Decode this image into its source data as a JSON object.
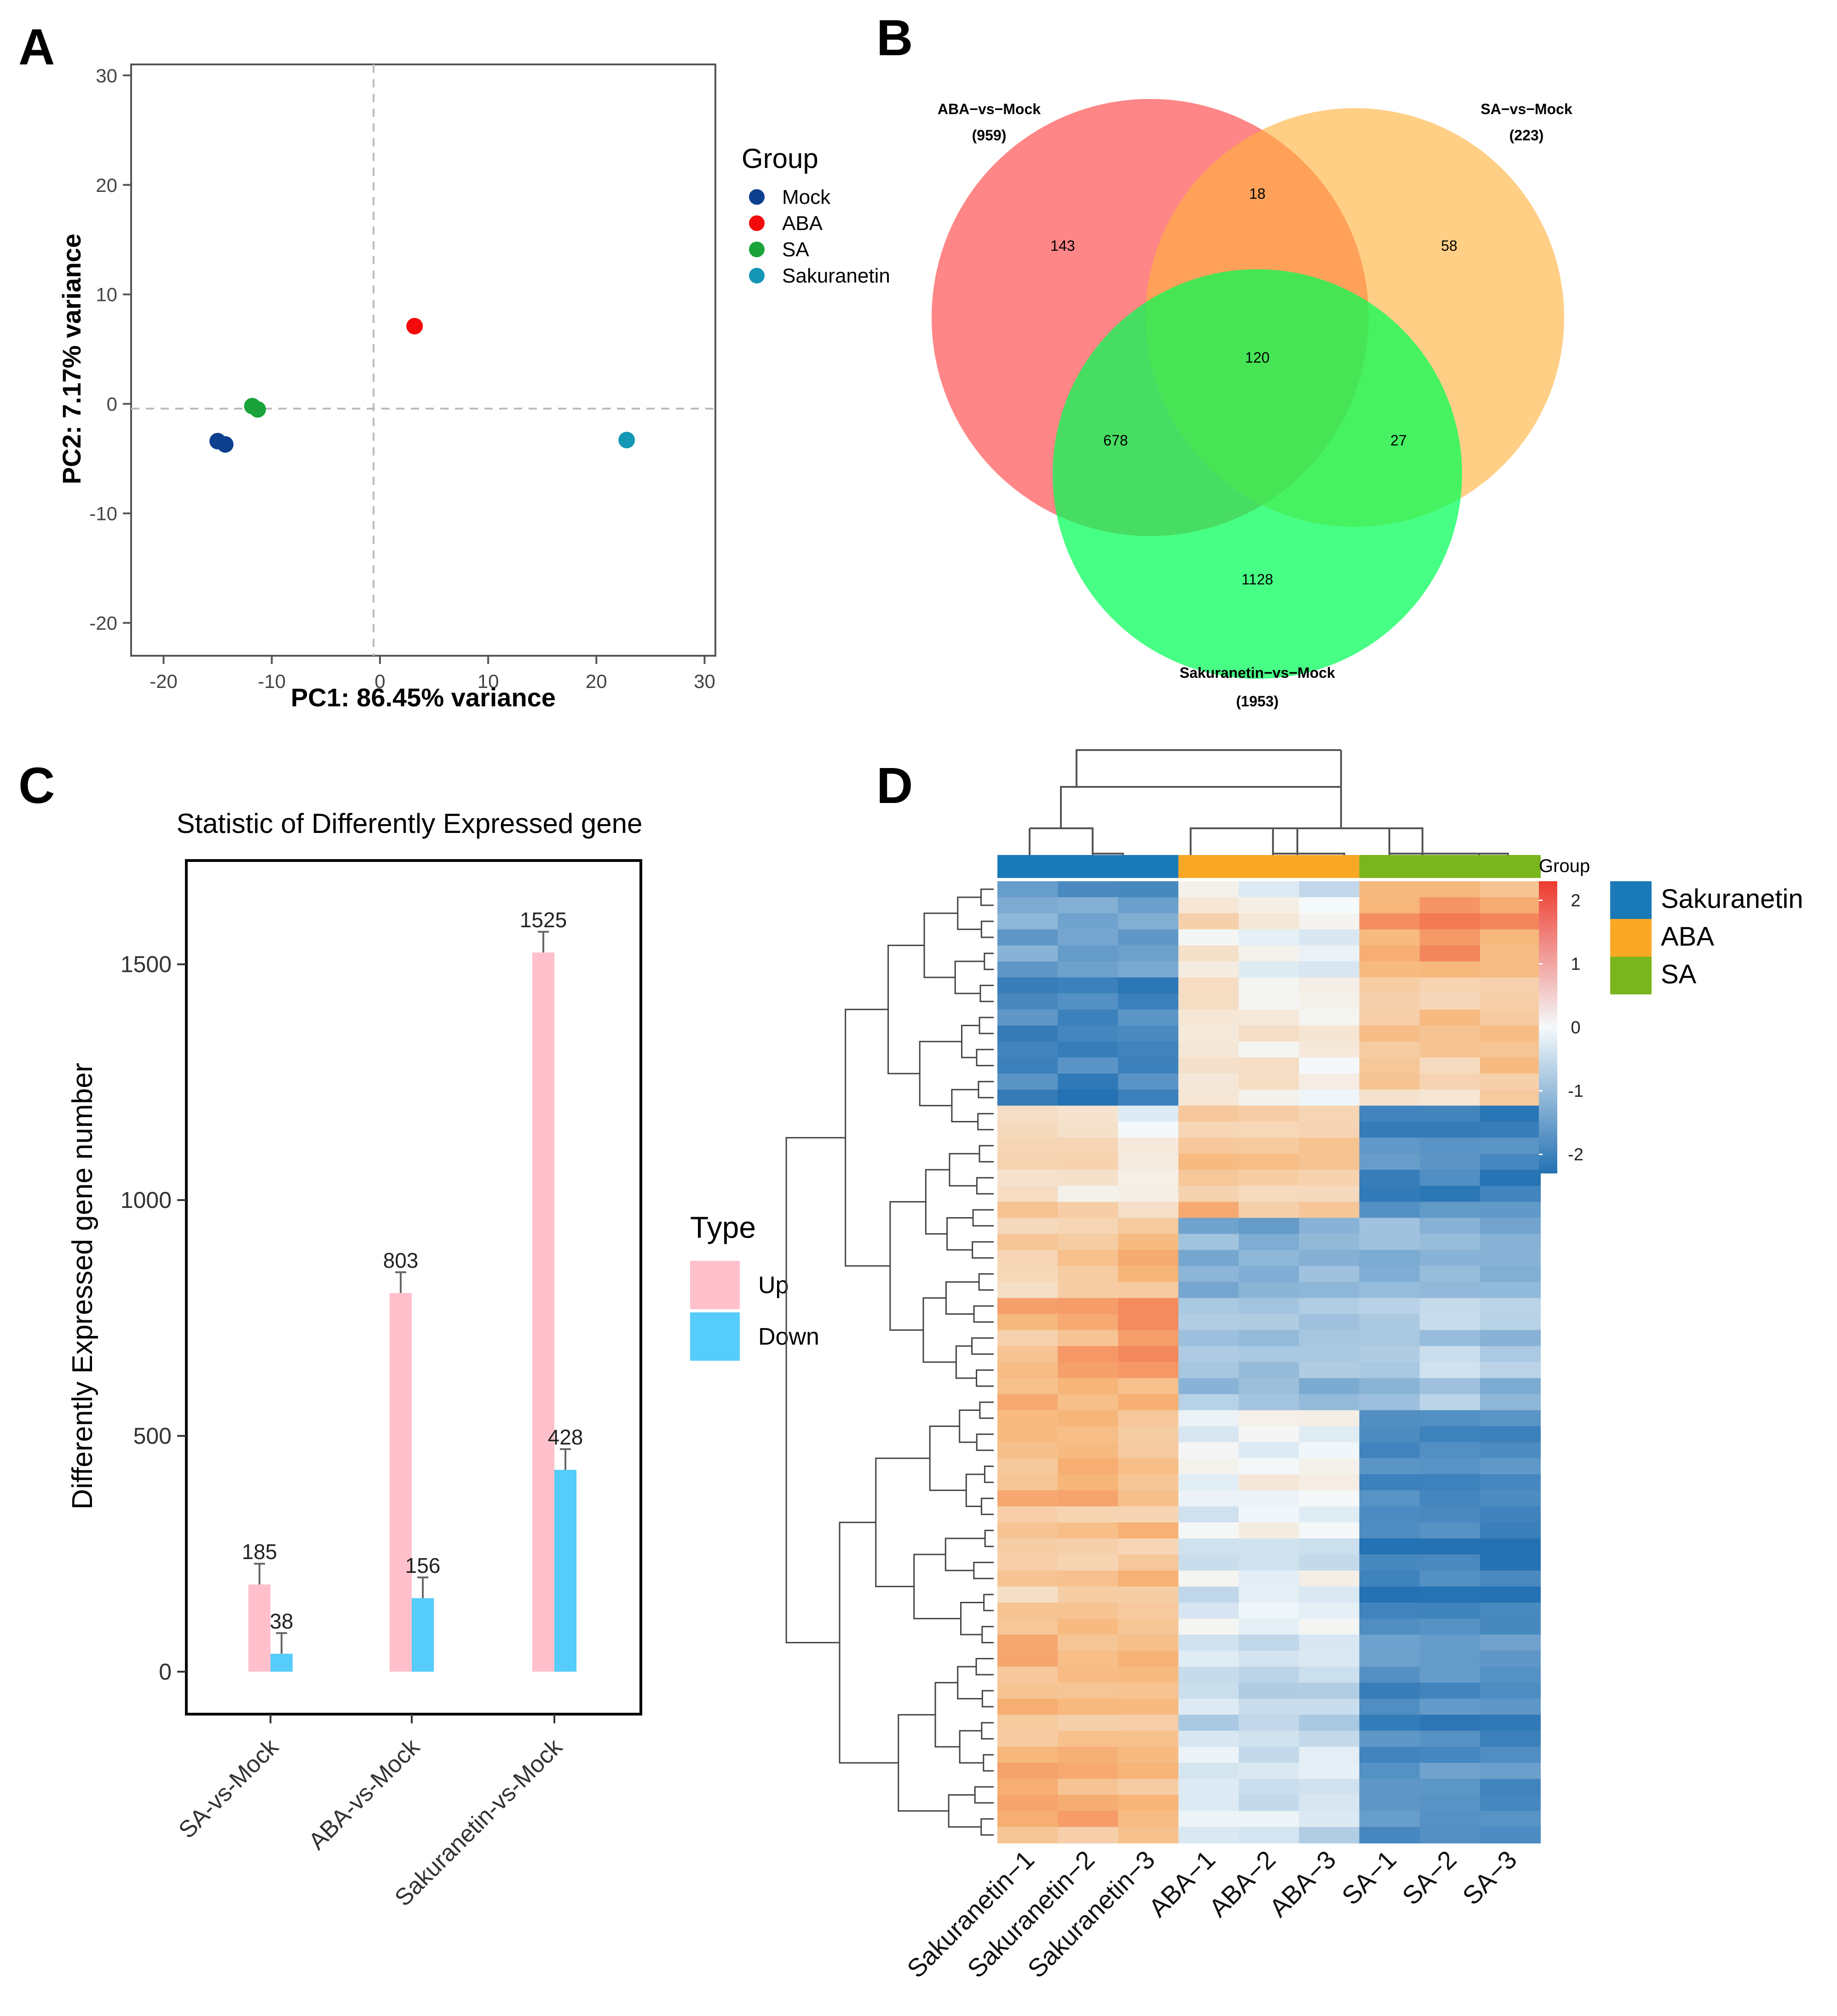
{
  "panels": {
    "a": "A",
    "b": "B",
    "c": "C",
    "d": "D"
  },
  "chart_data": [
    {
      "type": "scatter",
      "panel": "A",
      "title": "",
      "xlabel": "PC1: 86.45% variance",
      "ylabel": "PC2: 7.17% variance",
      "xlim": [
        -23,
        31
      ],
      "ylim": [
        -23,
        31
      ],
      "xticks": [
        -20,
        -10,
        0,
        10,
        20,
        30
      ],
      "yticks": [
        -20,
        -10,
        0,
        10,
        20,
        30
      ],
      "legend_title": "Group",
      "legend_position": "right",
      "series": [
        {
          "name": "Mock",
          "color": "#0d3f8f",
          "points": [
            [
              -15,
              -3.4
            ],
            [
              -14.3,
              -3.7
            ]
          ]
        },
        {
          "name": "ABA",
          "color": "#f20a0a",
          "points": [
            [
              3.2,
              7.1
            ]
          ]
        },
        {
          "name": "SA",
          "color": "#1aa33a",
          "points": [
            [
              -11.8,
              -0.2
            ],
            [
              -11.3,
              -0.5
            ]
          ]
        },
        {
          "name": "Sakuranetin",
          "color": "#1397b5",
          "points": [
            [
              22.8,
              -3.3
            ]
          ]
        }
      ]
    },
    {
      "type": "venn",
      "panel": "B",
      "sets": [
        {
          "name": "ABA−vs−Mock",
          "total": "(959)",
          "color": "#ff6b6b"
        },
        {
          "name": "SA−vs−Mock",
          "total": "(223)",
          "color": "#ffc04d"
        },
        {
          "name": "Sakuranetin−vs−Mock",
          "total": "(1953)",
          "color": "#00ff55"
        }
      ],
      "regions": {
        "aba_only": "143",
        "aba_sa": "18",
        "sa_only": "58",
        "aba_sa_sak": "120",
        "aba_sak": "678",
        "sa_sak": "27",
        "sak_only": "1128"
      }
    },
    {
      "type": "bar",
      "panel": "C",
      "title": "Statistic of Differently Expressed gene",
      "xlabel": "",
      "ylabel": "Differently Expressed gene number",
      "categories": [
        "SA-vs-Mock",
        "ABA-vs-Mock",
        "Sakuranetin-vs-Mock"
      ],
      "ylim": [
        -90,
        1720
      ],
      "yticks": [
        0,
        500,
        1000,
        1500
      ],
      "legend_title": "Type",
      "legend_position": "right",
      "series": [
        {
          "name": "Up",
          "color": "#ffc0cb",
          "values": [
            185,
            803,
            1525
          ]
        },
        {
          "name": "Down",
          "color": "#55ccfa",
          "values": [
            38,
            156,
            428
          ]
        }
      ]
    },
    {
      "type": "heatmap",
      "panel": "D",
      "columns": [
        "Sakuranetin−1",
        "Sakuranetin−2",
        "Sakuranetin−3",
        "ABA−1",
        "ABA−2",
        "ABA−3",
        "SA−1",
        "SA−2",
        "SA−3"
      ],
      "column_groups": [
        "Sakuranetin",
        "Sakuranetin",
        "Sakuranetin",
        "ABA",
        "ABA",
        "ABA",
        "SA",
        "SA",
        "SA"
      ],
      "group_annotation_label": "Group",
      "groups": [
        {
          "name": "Sakuranetin",
          "color": "#1a7ab8"
        },
        {
          "name": "ABA",
          "color": "#f9a825"
        },
        {
          "name": "SA",
          "color": "#7ab51d"
        }
      ],
      "scale_range": [
        -2.3,
        2.3
      ],
      "scale_ticks": [
        "2",
        "1",
        "0",
        "-1",
        "-2"
      ],
      "scale_tick_values": [
        2,
        1,
        0,
        -1,
        -2
      ],
      "scale_colors": [
        "#2471b3",
        "#f4f9fb",
        "#ee3b2f"
      ],
      "row_blocks": [
        {
          "rows": 6,
          "values": [
            -1.5,
            -1.5,
            -1.5,
            0.3,
            0.0,
            -0.2,
            1.3,
            1.3,
            1.2
          ]
        },
        {
          "rows": 8,
          "values": [
            -2.0,
            -2.0,
            -2.0,
            0.4,
            0.2,
            0.1,
            0.8,
            0.7,
            0.8
          ]
        },
        {
          "rows": 7,
          "values": [
            0.6,
            0.4,
            0.2,
            0.9,
            0.8,
            0.6,
            -2.0,
            -1.9,
            -2.0
          ]
        },
        {
          "rows": 12,
          "values": [
            1.0,
            1.1,
            1.3,
            -1.0,
            -1.1,
            -1.0,
            -0.9,
            -0.8,
            -1.0
          ]
        },
        {
          "rows": 14,
          "values": [
            0.9,
            0.9,
            0.9,
            -0.2,
            -0.1,
            -0.2,
            -2.0,
            -2.0,
            -2.0
          ]
        },
        {
          "rows": 13,
          "values": [
            1.0,
            1.0,
            1.0,
            -0.4,
            -0.5,
            -0.5,
            -1.8,
            -1.8,
            -1.8
          ]
        }
      ]
    }
  ]
}
